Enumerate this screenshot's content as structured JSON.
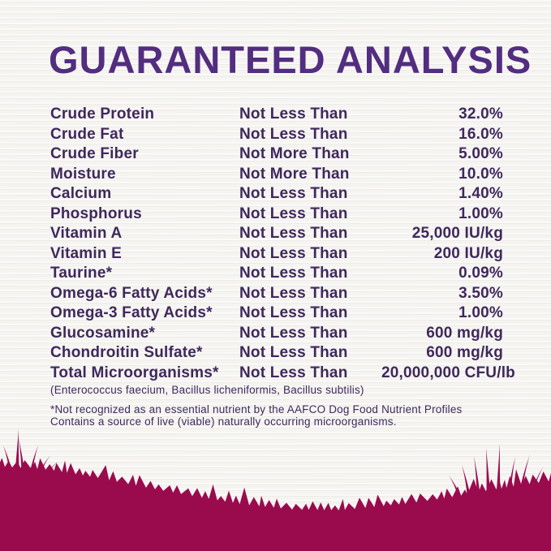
{
  "title": "GUARANTEED ANALYSIS",
  "colors": {
    "title_purple": "#522d80",
    "text_purple": "#3f285c",
    "grass_burgundy": "#9a0b4d",
    "paper": "#f4f3f0"
  },
  "analysis_table": {
    "rows": [
      {
        "nutrient": "Crude Protein",
        "qualifier": "Not Less Than",
        "value": "32.0%"
      },
      {
        "nutrient": "Crude Fat",
        "qualifier": "Not Less Than",
        "value": "16.0%"
      },
      {
        "nutrient": "Crude Fiber",
        "qualifier": "Not More Than",
        "value": "5.00%"
      },
      {
        "nutrient": "Moisture",
        "qualifier": "Not More Than",
        "value": "10.0%"
      },
      {
        "nutrient": "Calcium",
        "qualifier": "Not Less Than",
        "value": "1.40%"
      },
      {
        "nutrient": "Phosphorus",
        "qualifier": "Not Less Than",
        "value": "1.00%"
      },
      {
        "nutrient": "Vitamin A",
        "qualifier": "Not Less Than",
        "value": "25,000 IU/kg"
      },
      {
        "nutrient": "Vitamin E",
        "qualifier": "Not Less Than",
        "value": "200 IU/kg"
      },
      {
        "nutrient": "Taurine*",
        "qualifier": "Not Less Than",
        "value": "0.09%"
      },
      {
        "nutrient": "Omega-6 Fatty Acids*",
        "qualifier": "Not Less Than",
        "value": "3.50%"
      },
      {
        "nutrient": "Omega-3 Fatty Acids*",
        "qualifier": "Not Less Than",
        "value": "1.00%"
      },
      {
        "nutrient": "Glucosamine*",
        "qualifier": "Not Less Than",
        "value": "600 mg/kg"
      },
      {
        "nutrient": "Chondroitin Sulfate*",
        "qualifier": "Not Less Than",
        "value": "600 mg/kg"
      },
      {
        "nutrient": "Total Microorganisms*",
        "qualifier": "Not Less Than",
        "value": "20,000,000 CFU/lb"
      }
    ]
  },
  "footnotes": {
    "microorganism_species": "(Enterococcus faecium, Bacillus licheniformis, Bacillus subtilis)",
    "aafco_note": "*Not recognized as an essential nutrient by the AAFCO Dog Food Nutrient Profiles",
    "live_microorganisms_note": "Contains a source of live (viable) naturally occurring microorganisms."
  }
}
